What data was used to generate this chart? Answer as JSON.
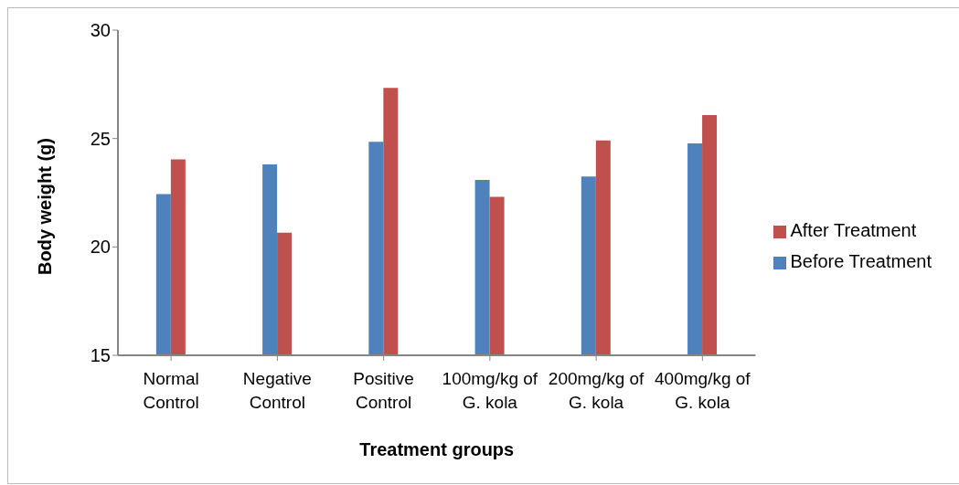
{
  "chart_data": {
    "type": "bar",
    "xlabel": "Treatment groups",
    "ylabel": "Body weight (g)",
    "categories": [
      "Normal Control",
      "Negative Control",
      "Positive Control",
      "100mg/kg of G. kola",
      "200mg/kg of G. kola",
      "400mg/kg of G. kola"
    ],
    "series": [
      {
        "name": "Before Treatment",
        "color": "#4f81bd",
        "values": [
          22.44,
          23.81,
          24.85,
          23.09,
          23.25,
          24.78
        ]
      },
      {
        "name": "After Treatment",
        "color": "#c0504d",
        "values": [
          24.04,
          20.66,
          27.34,
          22.31,
          24.91,
          26.08
        ]
      }
    ],
    "ylim": [
      15,
      30
    ],
    "yticks": [
      15,
      20,
      25,
      30
    ],
    "grid": false,
    "legend": "right"
  }
}
